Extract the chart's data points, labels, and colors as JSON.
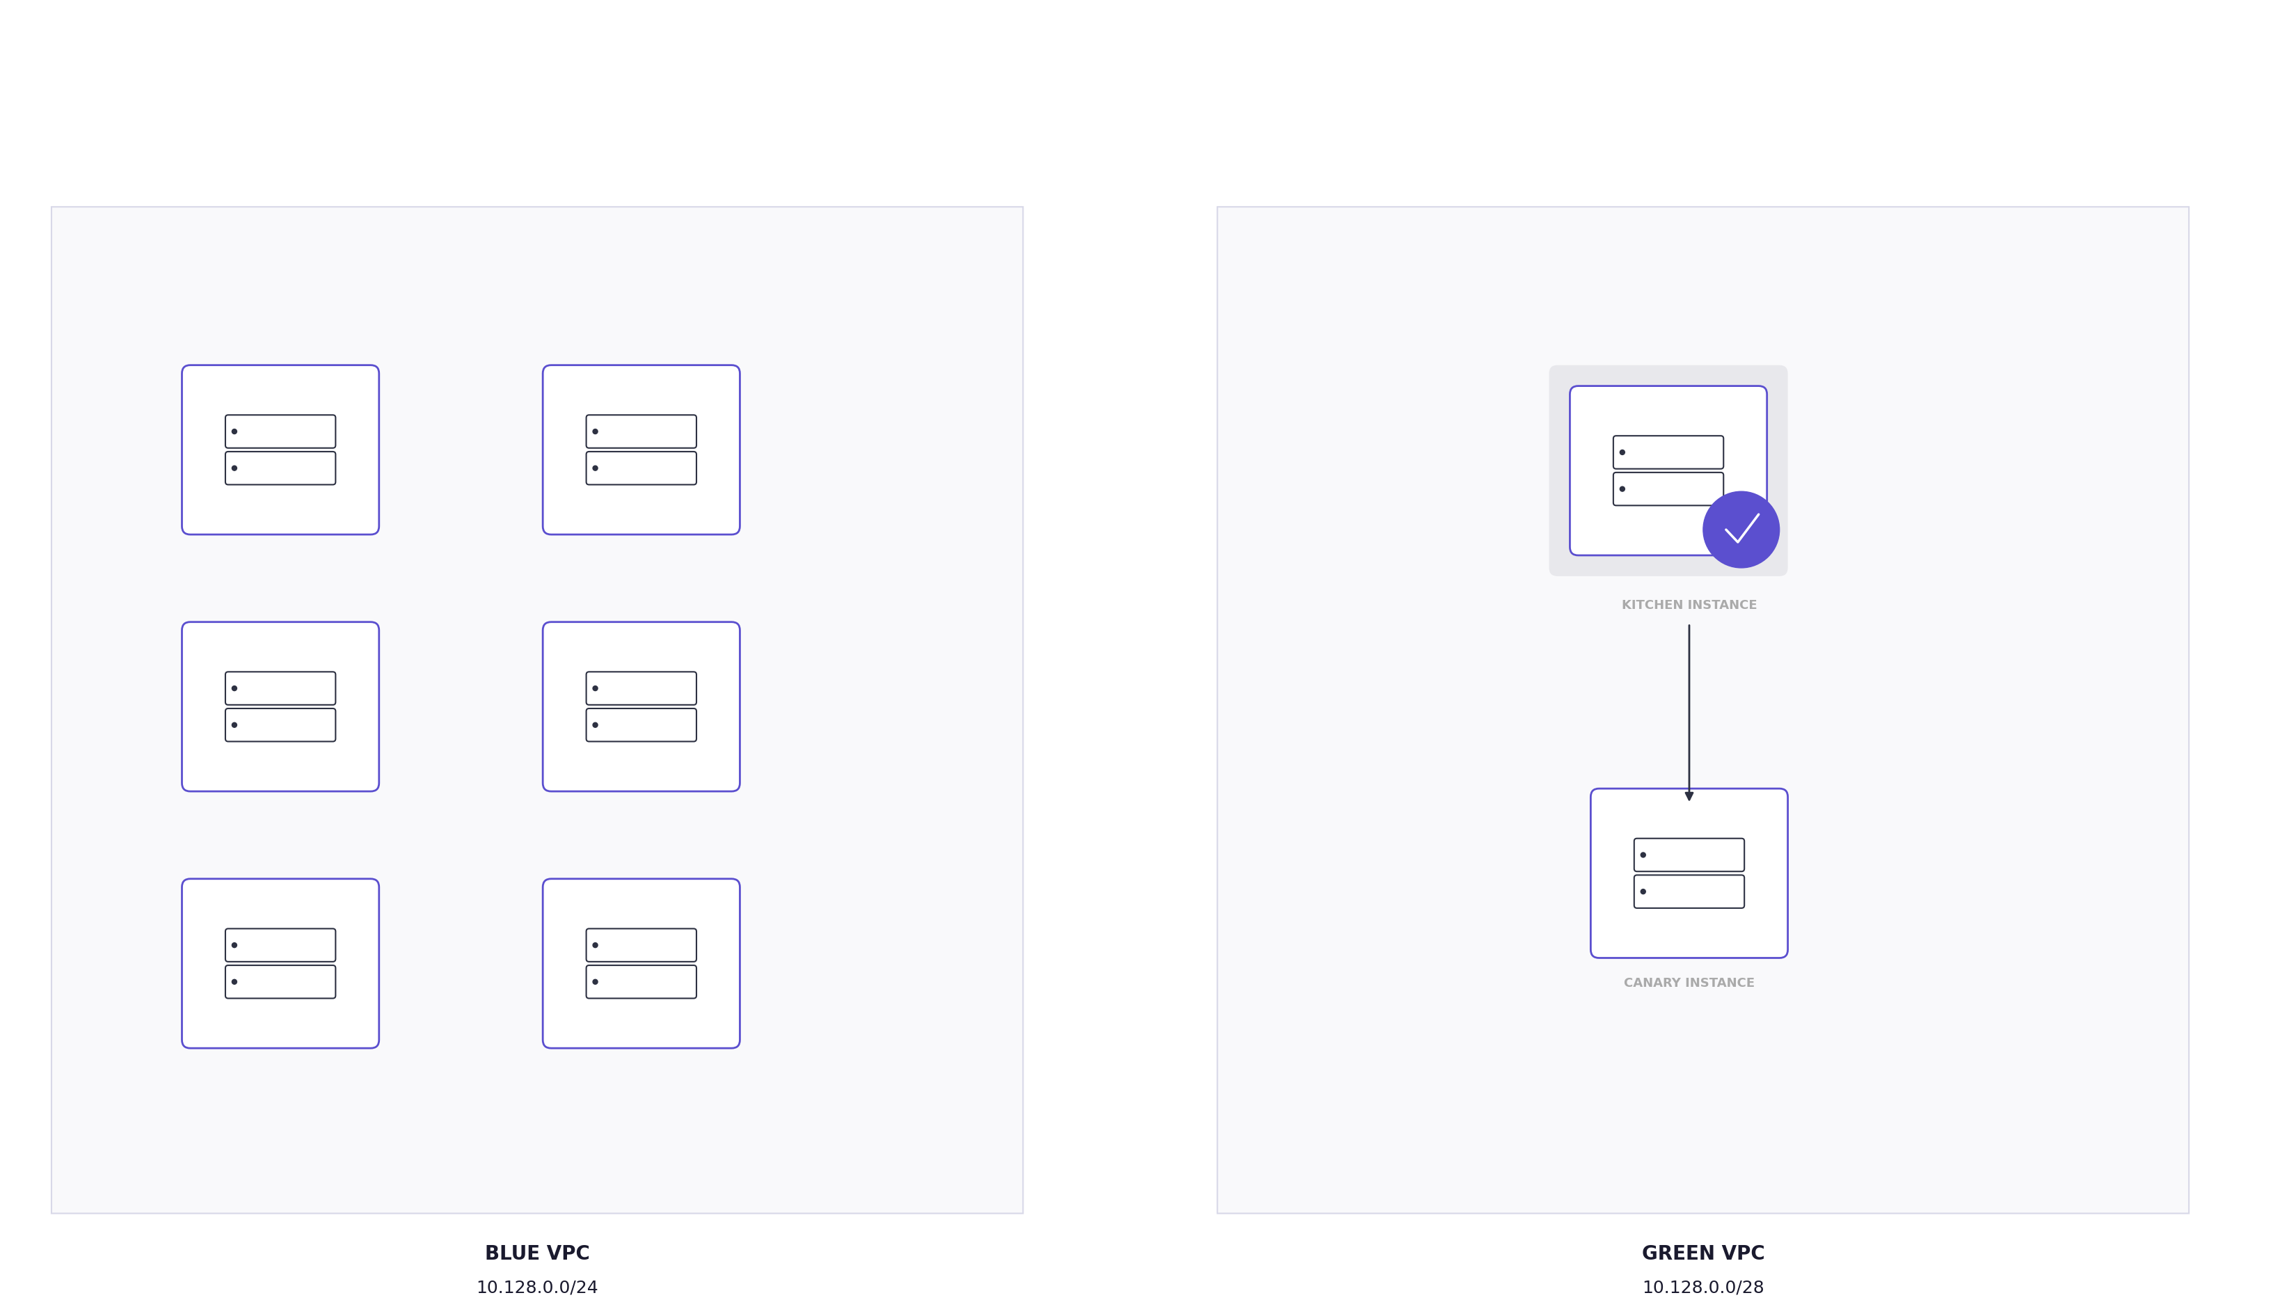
{
  "bg_color": "#ffffff",
  "outer_bg": "#f8f8f8",
  "panel_border_color": "#e0e0e8",
  "card_border_color": "#5b4fcf",
  "card_fill": "#ffffff",
  "dark_card_fill": "#eeeff4",
  "server_icon_color": "#2d3142",
  "arrow_color": "#2d3142",
  "check_circle_color": "#5b4fcf",
  "check_color": "#ffffff",
  "label_color": "#aaaaaa",
  "title_color": "#1a1a2e",
  "blue_vpc_title": "BLUE VPC",
  "blue_vpc_subtitle": "10.128.0.0/24",
  "green_vpc_title": "GREEN VPC",
  "green_vpc_subtitle": "10.128.0.0/28",
  "kitchen_label": "KITCHEN INSTANCE",
  "canary_label": "CANARY INSTANCE"
}
